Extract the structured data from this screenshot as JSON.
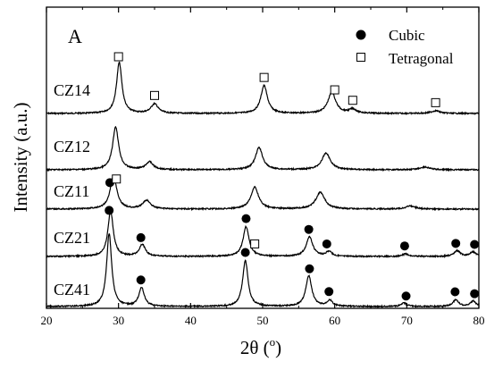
{
  "chart_data": {
    "type": "line",
    "panel_label": "A",
    "xlabel": "2θ (°)",
    "xlabel_main": "2θ (",
    "xlabel_sup": "o",
    "xlabel_close": ")",
    "ylabel": "Intensity (a.u.)",
    "xlim": [
      20,
      80
    ],
    "xticks": [
      20,
      30,
      40,
      50,
      60,
      70,
      80
    ],
    "y_axis_ticks": false,
    "grid": false,
    "legend": {
      "position": "top-right",
      "entries": [
        {
          "label": "Cubic",
          "marker": "filled-circle"
        },
        {
          "label": "Tetragonal",
          "marker": "open-square"
        }
      ]
    },
    "series": [
      {
        "name": "CZ14",
        "baseline": 1.0,
        "peaks": [
          {
            "x": 30.1,
            "h": 1.5,
            "w": 0.45
          },
          {
            "x": 35.0,
            "h": 0.28,
            "w": 0.6
          },
          {
            "x": 50.2,
            "h": 0.82,
            "w": 0.55
          },
          {
            "x": 59.6,
            "h": 0.62,
            "w": 0.65
          },
          {
            "x": 62.5,
            "h": 0.12,
            "w": 0.6
          },
          {
            "x": 74.0,
            "h": 0.08,
            "w": 0.7
          }
        ]
      },
      {
        "name": "CZ12",
        "baseline": 1.0,
        "peaks": [
          {
            "x": 29.6,
            "h": 1.55,
            "w": 0.5
          },
          {
            "x": 34.3,
            "h": 0.28,
            "w": 0.6
          },
          {
            "x": 49.5,
            "h": 0.8,
            "w": 0.6
          },
          {
            "x": 58.8,
            "h": 0.6,
            "w": 0.7
          },
          {
            "x": 72.5,
            "h": 0.1,
            "w": 0.8
          }
        ]
      },
      {
        "name": "CZ11",
        "baseline": 1.0,
        "peaks": [
          {
            "x": 29.3,
            "h": 1.1,
            "w": 0.55
          },
          {
            "x": 33.9,
            "h": 0.28,
            "w": 0.65
          },
          {
            "x": 48.9,
            "h": 0.72,
            "w": 0.65
          },
          {
            "x": 58.0,
            "h": 0.55,
            "w": 0.75
          },
          {
            "x": 70.5,
            "h": 0.1,
            "w": 0.8
          }
        ]
      },
      {
        "name": "CZ21",
        "baseline": 1.0,
        "peaks": [
          {
            "x": 28.9,
            "h": 1.45,
            "w": 0.45
          },
          {
            "x": 33.3,
            "h": 0.38,
            "w": 0.5
          },
          {
            "x": 47.7,
            "h": 0.95,
            "w": 0.5
          },
          {
            "x": 56.5,
            "h": 0.62,
            "w": 0.55
          },
          {
            "x": 59.2,
            "h": 0.15,
            "w": 0.5
          },
          {
            "x": 69.8,
            "h": 0.08,
            "w": 0.5
          },
          {
            "x": 77.0,
            "h": 0.18,
            "w": 0.5
          },
          {
            "x": 79.2,
            "h": 0.14,
            "w": 0.5
          }
        ]
      },
      {
        "name": "CZ41",
        "baseline": 1.0,
        "peaks": [
          {
            "x": 28.7,
            "h": 2.15,
            "w": 0.42
          },
          {
            "x": 33.2,
            "h": 0.55,
            "w": 0.45
          },
          {
            "x": 47.6,
            "h": 1.35,
            "w": 0.45
          },
          {
            "x": 56.4,
            "h": 0.9,
            "w": 0.5
          },
          {
            "x": 59.3,
            "h": 0.18,
            "w": 0.45
          },
          {
            "x": 69.6,
            "h": 0.1,
            "w": 0.45
          },
          {
            "x": 76.8,
            "h": 0.2,
            "w": 0.45
          },
          {
            "x": 79.2,
            "h": 0.16,
            "w": 0.45
          }
        ]
      }
    ],
    "annotations": [
      {
        "series": "CZ14",
        "marker": "open-square",
        "x": [
          30.0,
          35.0,
          50.2,
          60.0,
          62.5,
          74.0
        ]
      },
      {
        "series": "CZ11",
        "marker": "filled-circle",
        "x": [
          28.8
        ]
      },
      {
        "series": "CZ11",
        "marker": "open-square",
        "x": [
          29.7
        ]
      },
      {
        "series": "CZ21",
        "marker": "filled-circle",
        "x": [
          28.7,
          33.1,
          47.7,
          56.4,
          58.9,
          69.7,
          76.8,
          79.4
        ]
      },
      {
        "series": "CZ21",
        "marker": "open-square",
        "x": [
          48.9
        ]
      },
      {
        "series": "CZ41",
        "marker": "filled-circle",
        "x": [
          33.1,
          47.6,
          56.5,
          59.2,
          69.9,
          76.7,
          79.4
        ]
      }
    ]
  }
}
